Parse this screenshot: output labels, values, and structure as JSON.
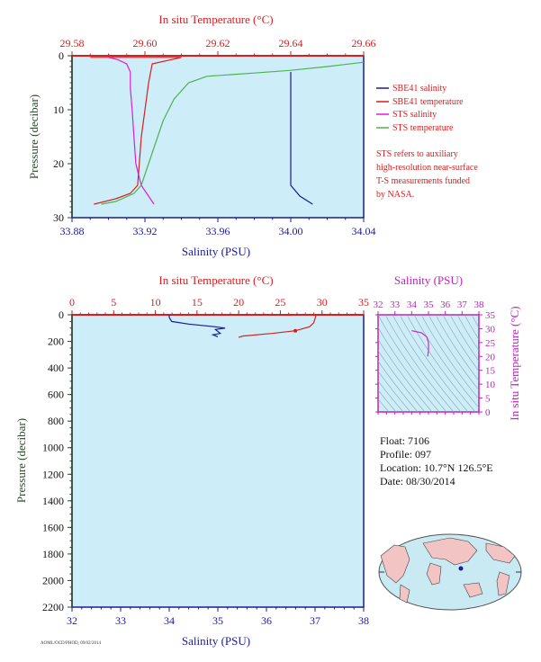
{
  "chart_data": [
    {
      "type": "line",
      "title": "",
      "top_axis_label": "In situ Temperature (°C)",
      "top_ticks": [
        "29.58",
        "29.60",
        "29.62",
        "29.64",
        "29.66"
      ],
      "top_range": [
        29.58,
        29.66
      ],
      "bottom_axis_label": "Salinity (PSU)",
      "bottom_ticks": [
        "33.88",
        "33.92",
        "33.96",
        "34.00",
        "34.04"
      ],
      "bottom_range": [
        33.88,
        34.04
      ],
      "ylabel": "Pressure (decibar)",
      "y_ticks": [
        "0",
        "10",
        "20",
        "30"
      ],
      "ylim": [
        0,
        30
      ],
      "legend": [
        "SBE41 salinity",
        "SBE41 temperature",
        "STS salinity",
        "STS temperature"
      ],
      "note": [
        "STS refers to auxiliary",
        "high-resolution near-surface",
        "T-S measurements funded",
        "by NASA."
      ],
      "series": [
        {
          "name": "SBE41 salinity",
          "axis": "salinity",
          "points": [
            [
              34.0,
              3
            ],
            [
              34.0,
              5
            ],
            [
              34.0,
              10
            ],
            [
              34.0,
              15
            ],
            [
              34.0,
              20
            ],
            [
              34.0,
              24
            ],
            [
              34.005,
              26
            ],
            [
              34.012,
              27.5
            ]
          ]
        },
        {
          "name": "STS salinity",
          "axis": "salinity",
          "points": [
            [
              33.9,
              0.3
            ],
            [
              33.905,
              0.7
            ],
            [
              33.91,
              1.5
            ],
            [
              33.912,
              3
            ],
            [
              33.912,
              6
            ],
            [
              33.913,
              10
            ],
            [
              33.914,
              15
            ],
            [
              33.915,
              20
            ],
            [
              33.918,
              24
            ],
            [
              33.921,
              25.5
            ],
            [
              33.925,
              27.5
            ]
          ]
        },
        {
          "name": "SBE41 temperature",
          "axis": "temperature",
          "points": [
            [
              29.585,
              0.3
            ],
            [
              29.61,
              0.3
            ],
            [
              29.602,
              1.5
            ],
            [
              29.601,
              5
            ],
            [
              29.599,
              15
            ],
            [
              29.598,
              24
            ],
            [
              29.596,
              25.5
            ],
            [
              29.592,
              26.5
            ],
            [
              29.586,
              27.5
            ]
          ]
        },
        {
          "name": "STS temperature",
          "axis": "temperature",
          "points": [
            [
              29.66,
              1.2
            ],
            [
              29.65,
              2.0
            ],
            [
              29.64,
              2.7
            ],
            [
              29.63,
              3.2
            ],
            [
              29.617,
              3.8
            ],
            [
              29.612,
              5
            ],
            [
              29.608,
              8
            ],
            [
              29.605,
              12
            ],
            [
              29.602,
              18
            ],
            [
              29.599,
              24
            ],
            [
              29.597,
              25.5
            ],
            [
              29.592,
              27
            ],
            [
              29.588,
              27.5
            ]
          ]
        }
      ]
    },
    {
      "type": "line",
      "title": "",
      "top_axis_label": "In situ Temperature (°C)",
      "top_ticks": [
        "0",
        "5",
        "10",
        "15",
        "20",
        "25",
        "30",
        "35"
      ],
      "top_range": [
        0,
        35
      ],
      "bottom_axis_label": "Salinity (PSU)",
      "bottom_ticks": [
        "32",
        "33",
        "34",
        "35",
        "36",
        "37",
        "38"
      ],
      "bottom_range": [
        32,
        38
      ],
      "ylabel": "Pressure (decibar)",
      "y_ticks": [
        "0",
        "200",
        "400",
        "600",
        "800",
        "1000",
        "1200",
        "1400",
        "1600",
        "1800",
        "2000",
        "2200"
      ],
      "ylim": [
        0,
        2200
      ],
      "series": [
        {
          "name": "Salinity",
          "axis": "salinity",
          "points": [
            [
              34.0,
              0
            ],
            [
              34.0,
              20
            ],
            [
              34.05,
              50
            ],
            [
              34.4,
              70
            ],
            [
              34.95,
              90
            ],
            [
              35.15,
              100
            ],
            [
              34.95,
              110
            ],
            [
              35.05,
              140
            ],
            [
              34.9,
              150
            ],
            [
              35.0,
              165
            ]
          ]
        },
        {
          "name": "Temperature",
          "axis": "temperature",
          "points": [
            [
              29.3,
              0
            ],
            [
              29.2,
              20
            ],
            [
              29.0,
              60
            ],
            [
              28.5,
              90
            ],
            [
              26.8,
              120
            ],
            [
              24.0,
              140
            ],
            [
              20.5,
              160
            ],
            [
              20.0,
              170
            ]
          ]
        }
      ]
    },
    {
      "type": "line",
      "title": "",
      "top_axis_label": "Salinity (PSU)",
      "top_ticks": [
        "32",
        "33",
        "34",
        "35",
        "36",
        "37",
        "38"
      ],
      "top_range": [
        32,
        38
      ],
      "right_axis_label": "In situ Temperature (°C)",
      "right_ticks": [
        "0",
        "5",
        "10",
        "15",
        "20",
        "25",
        "30",
        "35"
      ],
      "right_range": [
        0,
        35
      ],
      "series": [
        {
          "name": "T-S",
          "points": [
            [
              34.0,
              29.3
            ],
            [
              34.2,
              29.0
            ],
            [
              34.6,
              28.5
            ],
            [
              34.9,
              27.0
            ],
            [
              35.0,
              25.0
            ],
            [
              35.0,
              22.0
            ],
            [
              34.95,
              20.0
            ]
          ]
        }
      ]
    }
  ],
  "float_info": {
    "float": "Float:  7106",
    "profile": "Profile:  097",
    "location": "Location:  10.7°N  126.5°E",
    "date": "Date:  08/30/2014"
  },
  "footer_text": "AOML/OCD/PHOD, 09/02/2014",
  "colors": {
    "plot_bg": "#cdeef8",
    "salinity": "#1a1a9c",
    "temperature": "#d81e1e",
    "sts_salinity": "#d81ed8",
    "sts_temperature": "#50b050",
    "ts_axis": "#c020c0",
    "pressure_label": "#2a4a2a"
  }
}
